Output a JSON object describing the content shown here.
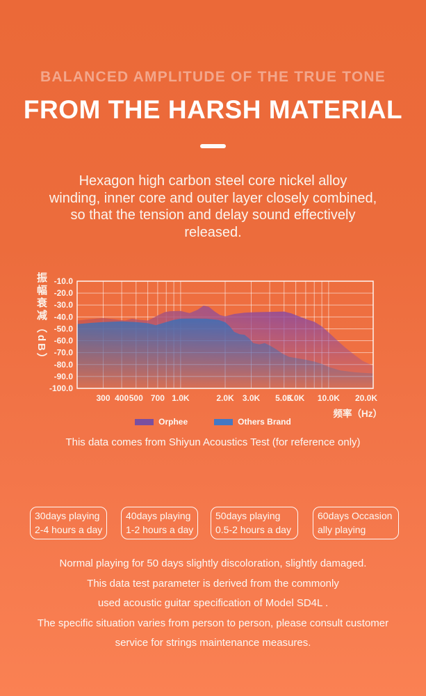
{
  "colors": {
    "bg_top": "#EB6938",
    "bg_bottom": "#FA8153",
    "subtitle_text": "#F3A78C",
    "grid": "rgba(255,255,255,0.55)",
    "axis": "rgba(255,255,255,0.9)",
    "tick_text": "#FDF4EE",
    "orphee_gradient_left": "#C4544E",
    "orphee_gradient_mid": "#A05389",
    "orphee_gradient_right": "#8E4B9E",
    "others_fill": "#3D6FB6",
    "legend_orphee": "#7A4FA0",
    "legend_others": "#4478C4"
  },
  "header": {
    "subtitle": "BALANCED AMPLITUDE OF THE TRUE TONE",
    "title": "FROM THE HARSH MATERIAL"
  },
  "intro": {
    "lines": [
      "Hexagon high carbon steel core nickel alloy",
      "winding, inner core and outer layer closely combined,",
      "so that the tension and delay sound effectively",
      "released."
    ]
  },
  "chart_data": {
    "type": "area",
    "title": "",
    "x_axis": {
      "label": "频率（Hz）",
      "scale": "log",
      "min_hz": 200,
      "max_hz": 20000,
      "tick_labels": [
        "300",
        "400",
        "500",
        "700",
        "1.0K",
        "2.0K",
        "3.0K",
        "5.0K",
        "6.0K",
        "10.0K",
        "20.0K"
      ],
      "tick_hz": [
        300,
        400,
        500,
        700,
        1000,
        2000,
        3000,
        5000,
        6000,
        10000,
        20000
      ],
      "grid_hz": [
        300,
        400,
        500,
        600,
        700,
        800,
        900,
        1000,
        2000,
        3000,
        4000,
        5000,
        6000,
        7000,
        8000,
        9000,
        10000
      ]
    },
    "y_axis": {
      "label": "振幅衰减（dB）",
      "min": -100,
      "max": -10,
      "tick_labels": [
        "-10.0",
        "-20.0",
        "-30.0",
        "-40.0",
        "-50.0",
        "-60.0",
        "-70.0",
        "-80.0",
        "-90.0",
        "-100.0"
      ],
      "grid": true
    },
    "legend_position": "bottom",
    "series": [
      {
        "name": "Orphee",
        "points_hz_db": [
          [
            200,
            -43
          ],
          [
            240,
            -42
          ],
          [
            300,
            -41
          ],
          [
            360,
            -42
          ],
          [
            420,
            -43
          ],
          [
            470,
            -41.5
          ],
          [
            530,
            -42.5
          ],
          [
            600,
            -43
          ],
          [
            650,
            -41
          ],
          [
            700,
            -38.8
          ],
          [
            780,
            -36
          ],
          [
            850,
            -35.2
          ],
          [
            1000,
            -35
          ],
          [
            1150,
            -36.8
          ],
          [
            1300,
            -34
          ],
          [
            1430,
            -30.5
          ],
          [
            1550,
            -31.5
          ],
          [
            1700,
            -35.5
          ],
          [
            1850,
            -38.5
          ],
          [
            2000,
            -39.5
          ],
          [
            2300,
            -37.5
          ],
          [
            2700,
            -36.5
          ],
          [
            3200,
            -36
          ],
          [
            4000,
            -35.8
          ],
          [
            5000,
            -35.5
          ],
          [
            5600,
            -37
          ],
          [
            6300,
            -39.5
          ],
          [
            7100,
            -42
          ],
          [
            8000,
            -44
          ],
          [
            9000,
            -48
          ],
          [
            10000,
            -53
          ],
          [
            11500,
            -60
          ],
          [
            13000,
            -66
          ],
          [
            15000,
            -72
          ],
          [
            17000,
            -77
          ],
          [
            20000,
            -81
          ]
        ]
      },
      {
        "name": "Others Brand",
        "points_hz_db": [
          [
            200,
            -46
          ],
          [
            250,
            -45
          ],
          [
            300,
            -44.3
          ],
          [
            400,
            -43.7
          ],
          [
            500,
            -44.3
          ],
          [
            600,
            -45.3
          ],
          [
            680,
            -47
          ],
          [
            800,
            -44.3
          ],
          [
            900,
            -42.5
          ],
          [
            1000,
            -41.5
          ],
          [
            1200,
            -41.3
          ],
          [
            1500,
            -41.5
          ],
          [
            1800,
            -42.5
          ],
          [
            2000,
            -44.5
          ],
          [
            2150,
            -48
          ],
          [
            2300,
            -52.5
          ],
          [
            2500,
            -54.5
          ],
          [
            2700,
            -55
          ],
          [
            2900,
            -58
          ],
          [
            3100,
            -62
          ],
          [
            3400,
            -63
          ],
          [
            3700,
            -62
          ],
          [
            4000,
            -64
          ],
          [
            4400,
            -67
          ],
          [
            4900,
            -71
          ],
          [
            5400,
            -73.5
          ],
          [
            6000,
            -74.5
          ],
          [
            7000,
            -76
          ],
          [
            8000,
            -77.5
          ],
          [
            9000,
            -79.5
          ],
          [
            10000,
            -82
          ],
          [
            12000,
            -85
          ],
          [
            15000,
            -86.5
          ],
          [
            20000,
            -87.5
          ]
        ]
      }
    ],
    "legend": [
      {
        "label": "Orphee"
      },
      {
        "label": "Others Brand"
      }
    ]
  },
  "chart_caption": "This data comes from Shiyun Acoustics Test (for reference only)",
  "duration_boxes": [
    {
      "line1": "30days playing",
      "line2": "2-4 hours a day"
    },
    {
      "line1": "40days playing",
      "line2": "1-2 hours a day"
    },
    {
      "line1": "50days playing",
      "line2": "0.5-2 hours a day"
    },
    {
      "line1": "60days Occasion",
      "line2": "ally playing"
    }
  ],
  "footer": {
    "lines": [
      "Normal playing for 50 days slightly discoloration, slightly damaged.",
      "This data test parameter is derived from the commonly",
      "used acoustic guitar specification of Model SD4L .",
      "The specific situation varies from person to person, please consult customer",
      "service for strings maintenance measures."
    ]
  }
}
